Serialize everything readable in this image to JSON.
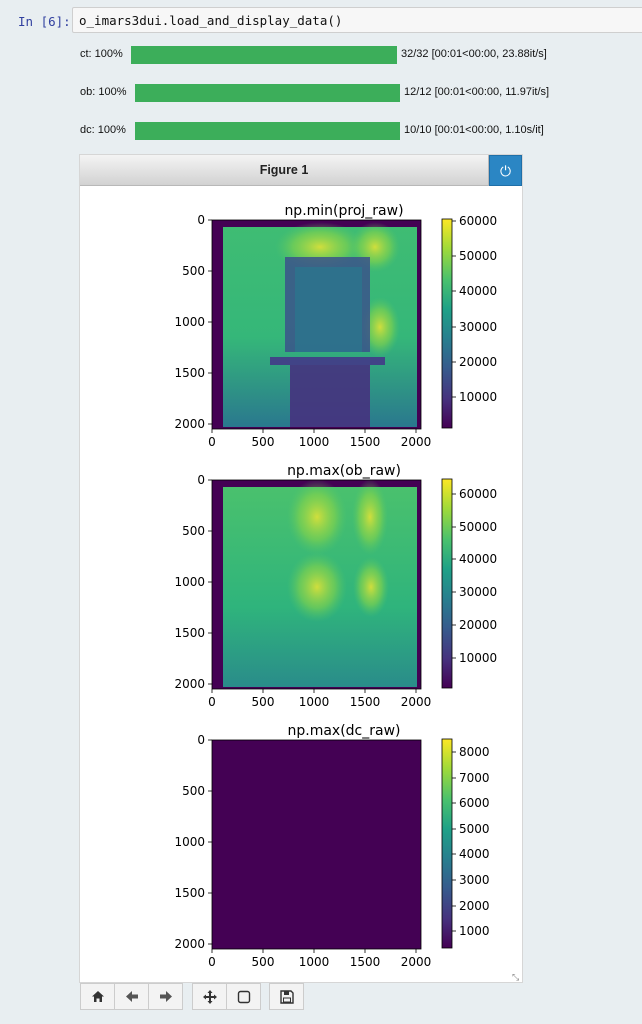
{
  "cell": {
    "prompt": "In [6]:",
    "code": "o_imars3dui.load_and_display_data()"
  },
  "progress": [
    {
      "label": "ct: 100%",
      "status": "32/32 [00:01<00:00, 23.88it/s]",
      "fraction": 1.0
    },
    {
      "label": "ob: 100%",
      "status": "12/12 [00:01<00:00, 11.97it/s]",
      "fraction": 1.0
    },
    {
      "label": "dc: 100%",
      "status": "10/10 [00:01<00:00, 1.10s/it]",
      "fraction": 1.0
    }
  ],
  "figure": {
    "title": "Figure 1",
    "colors": {
      "header_button": "#2b86c4",
      "progress": "#3cae5a"
    },
    "panels": [
      {
        "title": "np.min(proj_raw)",
        "xticks": [
          "0",
          "500",
          "1000",
          "1500",
          "2000"
        ],
        "yticks": [
          "0",
          "500",
          "1000",
          "1500",
          "2000"
        ],
        "colorbar_ticks": [
          "60000",
          "50000",
          "40000",
          "30000",
          "20000",
          "10000"
        ]
      },
      {
        "title": "np.max(ob_raw)",
        "xticks": [
          "0",
          "500",
          "1000",
          "1500",
          "2000"
        ],
        "yticks": [
          "0",
          "500",
          "1000",
          "1500",
          "2000"
        ],
        "colorbar_ticks": [
          "60000",
          "50000",
          "40000",
          "30000",
          "20000",
          "10000"
        ]
      },
      {
        "title": "np.max(dc_raw)",
        "xticks": [
          "0",
          "500",
          "1000",
          "1500",
          "2000"
        ],
        "yticks": [
          "0",
          "500",
          "1000",
          "1500",
          "2000"
        ],
        "colorbar_ticks": [
          "8000",
          "7000",
          "6000",
          "5000",
          "4000",
          "3000",
          "2000",
          "1000"
        ]
      }
    ]
  },
  "toolbar": {
    "buttons": [
      {
        "name": "home-icon"
      },
      {
        "name": "back-arrow-icon"
      },
      {
        "name": "forward-arrow-icon"
      },
      {
        "name": "pan-move-icon"
      },
      {
        "name": "zoom-rect-icon"
      },
      {
        "name": "save-disk-icon"
      }
    ]
  }
}
